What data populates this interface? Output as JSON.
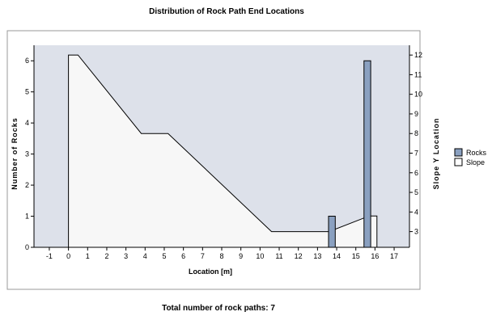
{
  "chart_data": {
    "type": "bar",
    "title": "Distribution of Rock Path End Locations",
    "footer": "Total number of rock paths:  7",
    "xlabel": "Location [m]",
    "ylabel": "Number of Rocks",
    "y2label": "Slope Y Location",
    "xlim": [
      -1.8,
      17.8
    ],
    "ylim": [
      0,
      6.5
    ],
    "y2lim": [
      2.2,
      12.5
    ],
    "x_ticks": [
      -1,
      0,
      1,
      2,
      3,
      4,
      5,
      6,
      7,
      8,
      9,
      10,
      11,
      12,
      13,
      14,
      15,
      16,
      17
    ],
    "y_ticks": [
      0,
      1,
      2,
      3,
      4,
      5,
      6
    ],
    "y2_ticks": [
      3,
      4,
      5,
      6,
      7,
      8,
      9,
      10,
      11,
      12
    ],
    "legend_position": "right",
    "colors": {
      "rocks": "#8aa0c0",
      "slope_fill": "#f7f7f7",
      "plot_bg": "#dde1ea",
      "frame": "#000000"
    },
    "series": [
      {
        "name": "Rocks",
        "kind": "bar",
        "bar_width": 0.35,
        "points": [
          {
            "x": 13.75,
            "y": 1
          },
          {
            "x": 15.6,
            "y": 6
          }
        ]
      },
      {
        "name": "Slope",
        "kind": "area",
        "axis": "right",
        "points": [
          {
            "x": 0,
            "y": 12
          },
          {
            "x": 0.5,
            "y": 12
          },
          {
            "x": 3.8,
            "y": 8
          },
          {
            "x": 5.2,
            "y": 8
          },
          {
            "x": 10.6,
            "y": 3
          },
          {
            "x": 13.6,
            "y": 3
          },
          {
            "x": 15.7,
            "y": 3.8
          },
          {
            "x": 16.1,
            "y": 3.8
          },
          {
            "x": 16.1,
            "y": 2.2
          },
          {
            "x": 0,
            "y": 2.2
          }
        ]
      }
    ]
  }
}
